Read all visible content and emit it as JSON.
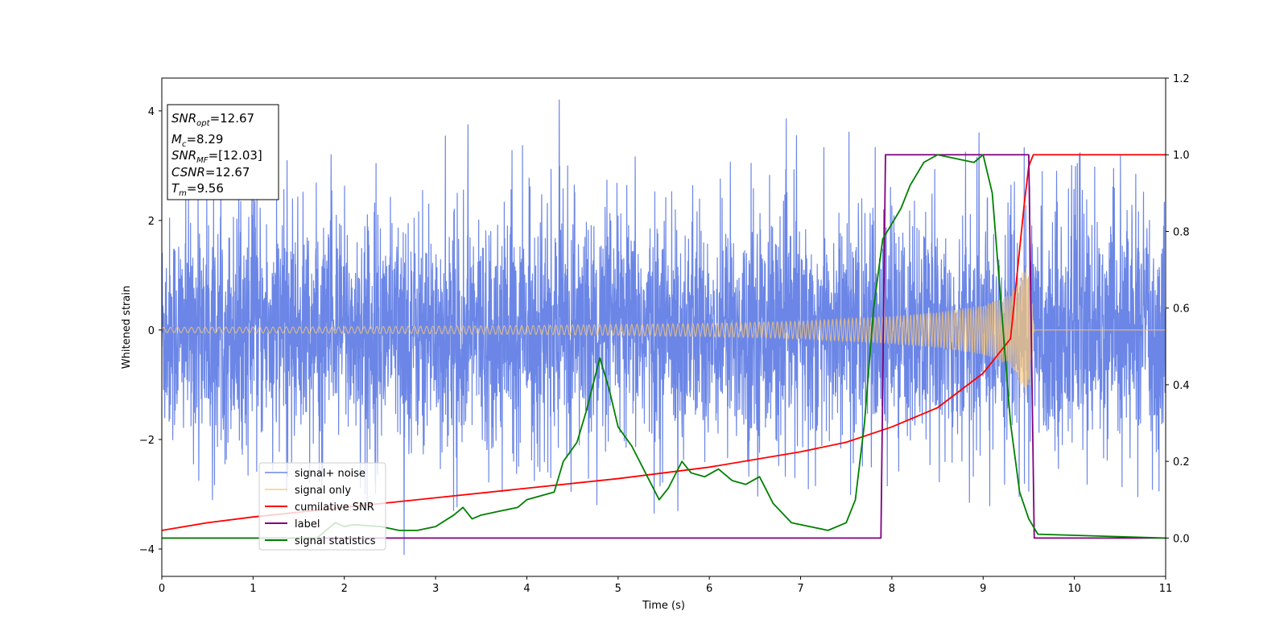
{
  "chart_data": {
    "type": "line",
    "title": "",
    "xlabel": "Time (s)",
    "ylabel": "Whitened strain",
    "xlim": [
      0,
      11
    ],
    "ylim": [
      -4.5,
      4.6
    ],
    "y2lim": [
      -0.1,
      1.2
    ],
    "x_ticks": [
      "0",
      "1",
      "2",
      "3",
      "4",
      "5",
      "6",
      "7",
      "8",
      "9",
      "10",
      "11"
    ],
    "y_ticks": [
      "−4",
      "−2",
      "0",
      "2",
      "4"
    ],
    "y2_ticks": [
      "0.0",
      "0.2",
      "0.4",
      "0.6",
      "0.8",
      "1.0",
      "1.2"
    ],
    "grid": false,
    "legend_position": "lower-left",
    "info_box": {
      "lines": [
        {
          "sym": "SNR",
          "sub": "opt",
          "value": "=12.67"
        },
        {
          "sym": "M",
          "sub": "c",
          "value": "=8.29"
        },
        {
          "sym": "SNR",
          "sub": "MF",
          "value": "=[12.03]"
        },
        {
          "sym": "CSNR",
          "sub": "",
          "value": "=12.67"
        },
        {
          "sym": "T",
          "sub": "m",
          "value": "=9.56"
        }
      ]
    },
    "series": [
      {
        "name": "signal+ noise",
        "axis": "left",
        "color": "#6b86e6",
        "kind": "noise",
        "mean": 0,
        "typical_range": [
          -2.4,
          2.4
        ],
        "spike_peaks": [
          [
            0.55,
            -3.1
          ],
          [
            1.0,
            3.1
          ],
          [
            1.85,
            3.2
          ],
          [
            2.65,
            -4.1
          ],
          [
            3.35,
            3.75
          ],
          [
            4.35,
            4.2
          ],
          [
            5.65,
            -3.3
          ],
          [
            6.95,
            3.55
          ],
          [
            8.95,
            3.6
          ],
          [
            9.8,
            2.9
          ],
          [
            10.5,
            3.2
          ]
        ]
      },
      {
        "name": "signal only",
        "axis": "left",
        "color": "#f5c67a",
        "kind": "chirp",
        "merger_time": 9.56,
        "amplitude_points": [
          [
            0,
            0.05
          ],
          [
            2,
            0.06
          ],
          [
            4,
            0.08
          ],
          [
            6,
            0.12
          ],
          [
            7,
            0.16
          ],
          [
            8,
            0.25
          ],
          [
            8.5,
            0.32
          ],
          [
            9,
            0.45
          ],
          [
            9.3,
            0.65
          ],
          [
            9.5,
            1.3
          ],
          [
            9.56,
            0
          ]
        ]
      },
      {
        "name": "cumilative SNR",
        "axis": "right",
        "color": "#ff0000",
        "points": [
          [
            0,
            0.02
          ],
          [
            0.5,
            0.04
          ],
          [
            1,
            0.055
          ],
          [
            2,
            0.08
          ],
          [
            3,
            0.105
          ],
          [
            4,
            0.13
          ],
          [
            5,
            0.155
          ],
          [
            6,
            0.185
          ],
          [
            7,
            0.225
          ],
          [
            7.5,
            0.25
          ],
          [
            8,
            0.29
          ],
          [
            8.5,
            0.34
          ],
          [
            9,
            0.43
          ],
          [
            9.3,
            0.52
          ],
          [
            9.45,
            0.87
          ],
          [
            9.5,
            0.97
          ],
          [
            9.55,
            1.0
          ],
          [
            11,
            1.0
          ]
        ]
      },
      {
        "name": "label",
        "axis": "right",
        "color": "#800080",
        "points": [
          [
            0,
            0
          ],
          [
            7.88,
            0
          ],
          [
            7.93,
            1.0
          ],
          [
            9.5,
            1.0
          ],
          [
            9.56,
            0
          ],
          [
            11,
            0
          ]
        ]
      },
      {
        "name": "signal statistics",
        "axis": "right",
        "color": "#008000",
        "points": [
          [
            0,
            0.0
          ],
          [
            1.0,
            0.0
          ],
          [
            1.7,
            0.0
          ],
          [
            1.9,
            0.04
          ],
          [
            2.0,
            0.03
          ],
          [
            2.1,
            0.035
          ],
          [
            2.4,
            0.03
          ],
          [
            2.6,
            0.02
          ],
          [
            2.8,
            0.02
          ],
          [
            3.0,
            0.03
          ],
          [
            3.2,
            0.06
          ],
          [
            3.3,
            0.08
          ],
          [
            3.4,
            0.05
          ],
          [
            3.5,
            0.06
          ],
          [
            3.7,
            0.07
          ],
          [
            3.9,
            0.08
          ],
          [
            4.0,
            0.1
          ],
          [
            4.15,
            0.11
          ],
          [
            4.3,
            0.12
          ],
          [
            4.4,
            0.2
          ],
          [
            4.55,
            0.25
          ],
          [
            4.65,
            0.33
          ],
          [
            4.8,
            0.47
          ],
          [
            4.9,
            0.39
          ],
          [
            5.0,
            0.29
          ],
          [
            5.15,
            0.24
          ],
          [
            5.3,
            0.17
          ],
          [
            5.45,
            0.1
          ],
          [
            5.55,
            0.13
          ],
          [
            5.7,
            0.2
          ],
          [
            5.8,
            0.17
          ],
          [
            5.95,
            0.16
          ],
          [
            6.1,
            0.18
          ],
          [
            6.25,
            0.15
          ],
          [
            6.4,
            0.14
          ],
          [
            6.55,
            0.16
          ],
          [
            6.7,
            0.09
          ],
          [
            6.9,
            0.04
          ],
          [
            7.1,
            0.03
          ],
          [
            7.3,
            0.02
          ],
          [
            7.5,
            0.04
          ],
          [
            7.6,
            0.1
          ],
          [
            7.7,
            0.3
          ],
          [
            7.8,
            0.6
          ],
          [
            7.9,
            0.78
          ],
          [
            8.0,
            0.82
          ],
          [
            8.1,
            0.86
          ],
          [
            8.2,
            0.92
          ],
          [
            8.35,
            0.98
          ],
          [
            8.5,
            1.0
          ],
          [
            8.9,
            0.98
          ],
          [
            9.0,
            1.0
          ],
          [
            9.1,
            0.9
          ],
          [
            9.2,
            0.6
          ],
          [
            9.3,
            0.3
          ],
          [
            9.4,
            0.12
          ],
          [
            9.5,
            0.05
          ],
          [
            9.6,
            0.01
          ],
          [
            11,
            0.0
          ]
        ]
      }
    ]
  }
}
